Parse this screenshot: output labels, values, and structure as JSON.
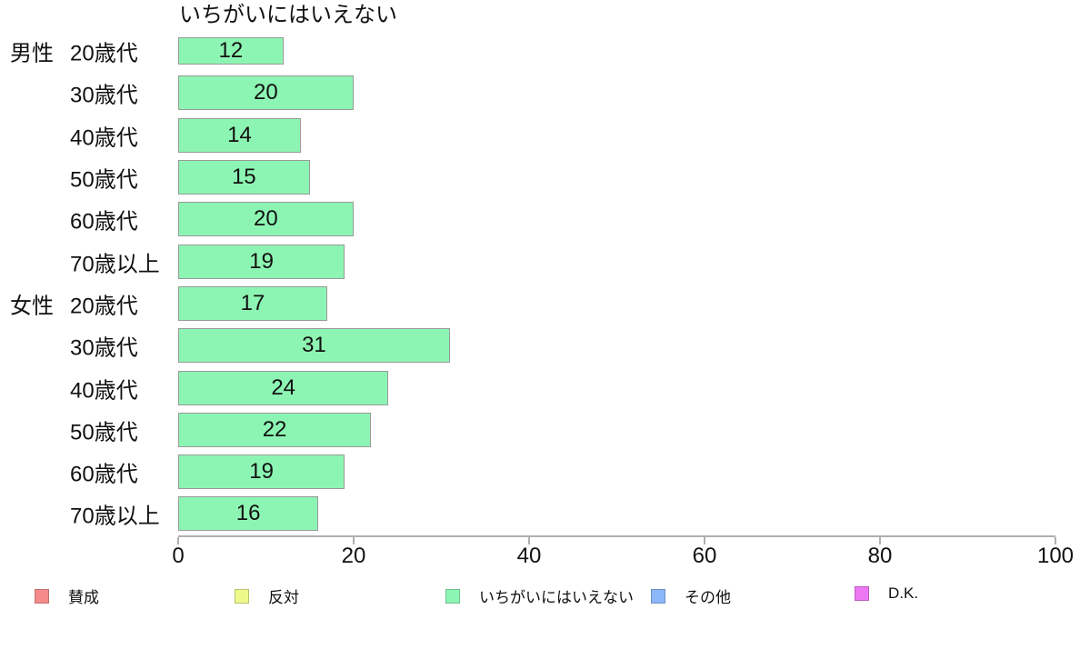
{
  "chart_data": {
    "type": "bar",
    "orientation": "horizontal",
    "title": "いちがいにはいえない",
    "series_name": "いちがいにはいえない",
    "categories": [
      "男性 20歳代",
      "30歳代",
      "40歳代",
      "50歳代",
      "60歳代",
      "70歳以上",
      "女性 20歳代",
      "30歳代",
      "40歳代",
      "50歳代",
      "60歳代",
      "70歳以上"
    ],
    "values": [
      12,
      20,
      14,
      15,
      20,
      19,
      17,
      31,
      24,
      22,
      19,
      16
    ],
    "rows": [
      {
        "group": "男性",
        "age": "20歳代",
        "value": 12
      },
      {
        "group": "",
        "age": "30歳代",
        "value": 20
      },
      {
        "group": "",
        "age": "40歳代",
        "value": 14
      },
      {
        "group": "",
        "age": "50歳代",
        "value": 15
      },
      {
        "group": "",
        "age": "60歳代",
        "value": 20
      },
      {
        "group": "",
        "age": "70歳以上",
        "value": 19
      },
      {
        "group": "女性",
        "age": "20歳代",
        "value": 17
      },
      {
        "group": "",
        "age": "30歳代",
        "value": 31
      },
      {
        "group": "",
        "age": "40歳代",
        "value": 24
      },
      {
        "group": "",
        "age": "50歳代",
        "value": 22
      },
      {
        "group": "",
        "age": "60歳代",
        "value": 19
      },
      {
        "group": "",
        "age": "70歳以上",
        "value": 16
      }
    ],
    "xlabel": "",
    "ylabel": "",
    "xlim": [
      0,
      100
    ],
    "x_ticks": [
      0,
      20,
      40,
      60,
      80,
      100
    ],
    "grid": "off",
    "bar_color": "#8DF5B3",
    "bar_border_color": "#999999",
    "legend": {
      "position": "bottom",
      "items": [
        {
          "label": "賛成",
          "color": "#F48A8A",
          "border": "#C07070"
        },
        {
          "label": "反対",
          "color": "#EEF98C",
          "border": "#B8C26C"
        },
        {
          "label": "いちがいにはいえない",
          "color": "#8DF5B3",
          "border": "#6FC08D"
        },
        {
          "label": "その他",
          "color": "#8CB7F9",
          "border": "#6E90C4"
        },
        {
          "label": "D.K.",
          "color": "#EC78F3",
          "border": "#B95CBF"
        }
      ]
    }
  }
}
